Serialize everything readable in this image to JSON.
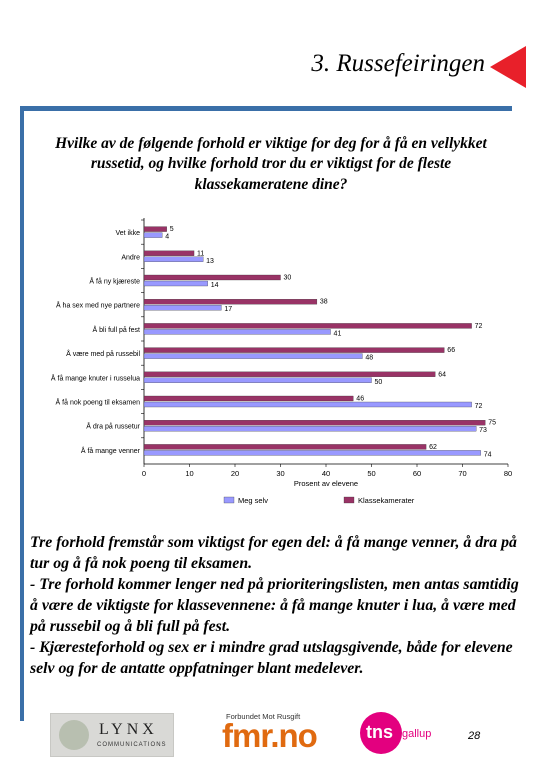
{
  "header": {
    "title": "3. Russefeiringen"
  },
  "question": "Hvilke av de følgende forhold er viktige for deg for å få en vellykket russetid, og hvilke forhold tror du er viktigst for de fleste klassekameratene dine?",
  "chart_data": {
    "type": "bar",
    "orientation": "horizontal",
    "categories": [
      "Vet ikke",
      "Andre",
      "Å få ny kjæreste",
      "Å ha sex med nye partnere",
      "Å bli full på fest",
      "Å være med på russebil",
      "Å få mange knuter i russelua",
      "Å få nok poeng til eksamen",
      "Å dra på russetur",
      "Å få mange venner"
    ],
    "series": [
      {
        "name": "Meg selv",
        "color": "#9999ff",
        "values": [
          4,
          13,
          14,
          17,
          41,
          48,
          50,
          72,
          73,
          74
        ]
      },
      {
        "name": "Klassekamerater",
        "color": "#993366",
        "values": [
          5,
          11,
          30,
          38,
          72,
          66,
          64,
          46,
          75,
          62
        ]
      }
    ],
    "xlabel": "Prosent av elevene",
    "ylabel": "",
    "xlim": [
      0,
      80
    ],
    "xticks": [
      0,
      10,
      20,
      30,
      40,
      50,
      60,
      70,
      80
    ],
    "grid": false,
    "legend_position": "bottom"
  },
  "body": {
    "p1": "Tre forhold fremstår som viktigst for egen del: å få mange venner, å dra på tur og å få nok poeng til eksamen.",
    "p2": "- Tre forhold kommer lenger ned på prioriteringslisten, men antas samtidig å være de viktigste for klassevennene: å få mange knuter i lua, å være med på russebil og å bli full på fest.",
    "p3": "- Kjæresteforhold og sex er i mindre grad utslagsgivende, både for elevene selv og for de antatte oppfatninger blant medelever."
  },
  "footer": {
    "lynx_name": "LYNX",
    "lynx_sub": "COMMUNICATIONS",
    "fmr_small": "Forbundet Mot Rusgift",
    "fmr_big": "fmr.no",
    "tns_word": "tns",
    "tns_sub": "gallup",
    "page_number": "28"
  },
  "colors": {
    "accent_rule": "#3a6fa8",
    "arrow": "#e8202a"
  }
}
